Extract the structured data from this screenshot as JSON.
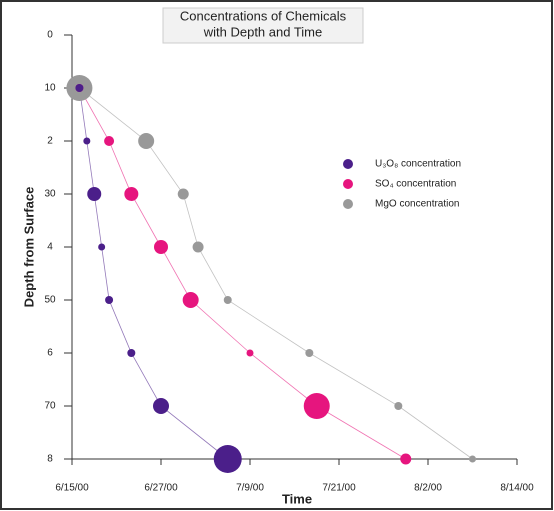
{
  "chart_data": {
    "type": "bubble",
    "title": [
      "Concentrations of Chemicals",
      "with Depth and Time"
    ],
    "xlabel": "Time",
    "ylabel": "Depth from Surface",
    "xlim": [
      "2000-06-15",
      "2000-08-14"
    ],
    "xticks": [
      {
        "value": "2000-06-15",
        "label": "6/15/00"
      },
      {
        "value": "2000-06-27",
        "label": "6/27/00"
      },
      {
        "value": "2000-07-09",
        "label": "7/9/00"
      },
      {
        "value": "2000-07-21",
        "label": "7/21/00"
      },
      {
        "value": "2000-08-02",
        "label": "8/2/00"
      },
      {
        "value": "2000-08-14",
        "label": "8/14/00"
      }
    ],
    "ylim": [
      0,
      80
    ],
    "y_inverted": true,
    "yticks": [
      0,
      10,
      {
        "value": 20,
        "label": "2"
      },
      30,
      {
        "value": 40,
        "label": "4"
      },
      50,
      {
        "value": 60,
        "label": "6"
      },
      70,
      {
        "value": 80,
        "label": "8"
      }
    ],
    "series": [
      {
        "name": "U₃O₈ concentration",
        "color": "#4b1f8a",
        "x": [
          "2000-06-16",
          "2000-06-17",
          "2000-06-18",
          "2000-06-19",
          "2000-06-20",
          "2000-06-23",
          "2000-06-27",
          "2000-07-06"
        ],
        "values": [
          10,
          20,
          30,
          40,
          50,
          60,
          70,
          80
        ],
        "sizes": [
          4,
          3.5,
          7,
          3.5,
          4,
          4,
          8,
          14
        ]
      },
      {
        "name": "SO₄ concentration",
        "color": "#e6157e",
        "x": [
          "2000-06-16",
          "2000-06-20",
          "2000-06-23",
          "2000-06-27",
          "2000-07-01",
          "2000-07-09",
          "2000-07-18",
          "2000-07-30"
        ],
        "values": [
          10,
          20,
          30,
          40,
          50,
          60,
          70,
          80
        ],
        "sizes": [
          4,
          5,
          7,
          7,
          8,
          3.5,
          13,
          5.5
        ]
      },
      {
        "name": "MgO concentration",
        "color": "#999999",
        "x": [
          "2000-06-16",
          "2000-06-25",
          "2000-06-30",
          "2000-07-02",
          "2000-07-06",
          "2000-07-17",
          "2000-07-29",
          "2000-08-08"
        ],
        "values": [
          10,
          20,
          30,
          40,
          50,
          60,
          70,
          80
        ],
        "sizes": [
          13,
          8,
          5.5,
          5.5,
          4,
          4,
          4,
          3.5
        ]
      }
    ]
  }
}
